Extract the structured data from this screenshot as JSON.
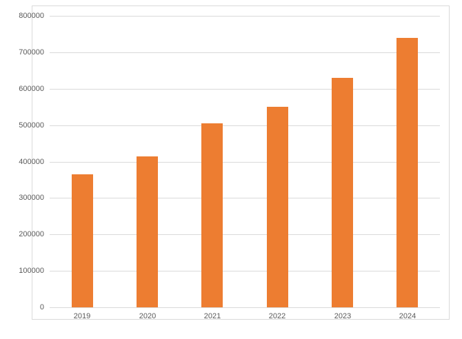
{
  "chart_data": {
    "type": "bar",
    "title": "",
    "xlabel": "",
    "ylabel": "",
    "categories": [
      "2019",
      "2020",
      "2021",
      "2022",
      "2023",
      "2024"
    ],
    "values": [
      365000,
      415000,
      505000,
      550000,
      630000,
      740000
    ],
    "ylim": [
      0,
      800000
    ],
    "ytick_interval": 100000,
    "ytick_labels": [
      "0",
      "100000",
      "200000",
      "300000",
      "400000",
      "500000",
      "600000",
      "700000",
      "800000"
    ],
    "grid": true,
    "legend_position": "none",
    "colors": {
      "bar": "#ED7D31",
      "gridline": "#D9D9D9",
      "axis_line": "#D9D9D9",
      "tick_label": "#595959",
      "frame_border": "#D9D9D9",
      "background": "#FFFFFF"
    }
  }
}
